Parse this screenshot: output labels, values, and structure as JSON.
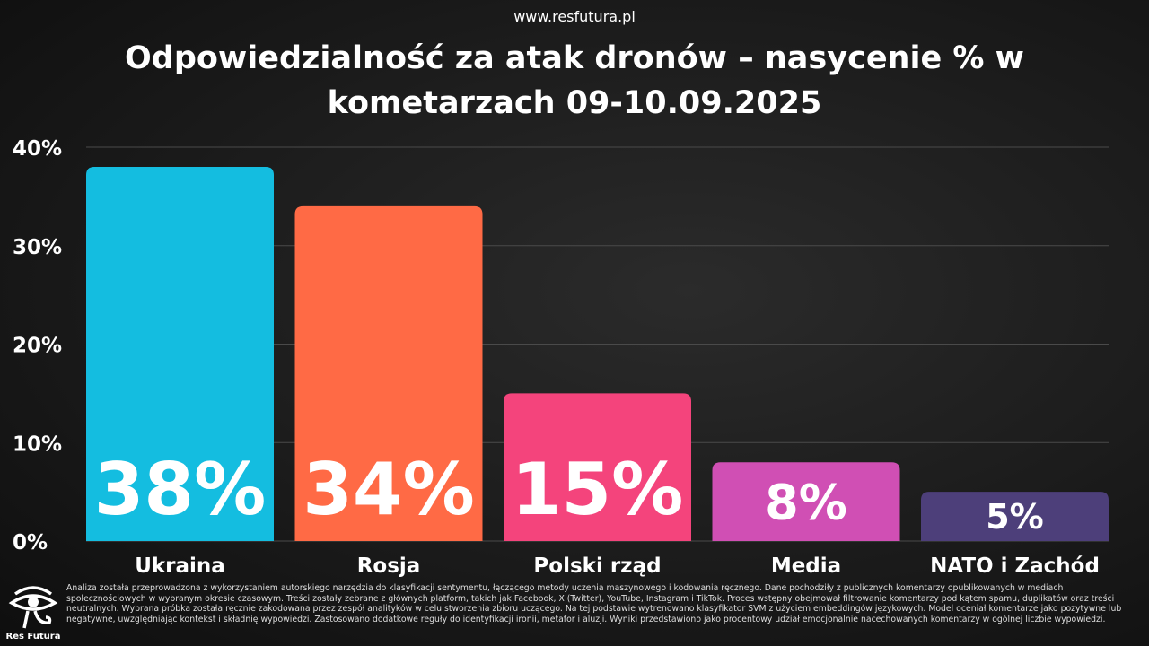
{
  "site": "www.resfutura.pl",
  "title_line1": "Odpowiedzialność za atak dronów – nasycenie % w",
  "title_line2": "kometarzach 09-10.09.2025",
  "chart_data": {
    "type": "bar",
    "title": "Odpowiedzialność za atak dronów – nasycenie % w kometarzach 09-10.09.2025",
    "categories": [
      "Ukraina",
      "Rosja",
      "Polski rząd",
      "Media",
      "NATO i Zachód"
    ],
    "values": [
      38,
      34,
      15,
      8,
      5
    ],
    "data_labels": [
      "38%",
      "34%",
      "15%",
      "8%",
      "5%"
    ],
    "colors": [
      "#14bde0",
      "#ff6a45",
      "#f4447c",
      "#d04fb4",
      "#4d3f7a"
    ],
    "yticks": [
      "0%",
      "10%",
      "20%",
      "30%",
      "40%"
    ],
    "ylim": [
      0,
      40
    ],
    "grid": true
  },
  "footer": "Analiza została przeprowadzona z wykorzystaniem autorskiego narzędzia do klasyfikacji sentymentu, łączącego metody uczenia maszynowego i kodowania ręcznego. Dane pochodziły z publicznych komentarzy opublikowanych w mediach społecznościowych w wybranym okresie czasowym. Treści zostały zebrane z głównych platform, takich jak Facebook, X (Twitter), YouTube, Instagram i TikTok. Proces wstępny obejmował filtrowanie komentarzy pod kątem spamu, duplikatów oraz treści neutralnych. Wybrana próbka została ręcznie zakodowana przez zespół analityków w celu stworzenia zbioru uczącego. Na tej podstawie wytrenowano klasyfikator SVM z użyciem embeddingów językowych. Model oceniał komentarze jako pozytywne lub negatywne, uwzględniając kontekst i składnię wypowiedzi. Zastosowano dodatkowe reguły do identyfikacji ironii, metafor i aluzji. Wyniki przedstawiono jako procentowy udział emocjonalnie nacechowanych komentarzy w ogólnej liczbie wypowiedzi.",
  "logo": {
    "text": "Res Futura",
    "icon": "eye-of-horus-icon"
  }
}
